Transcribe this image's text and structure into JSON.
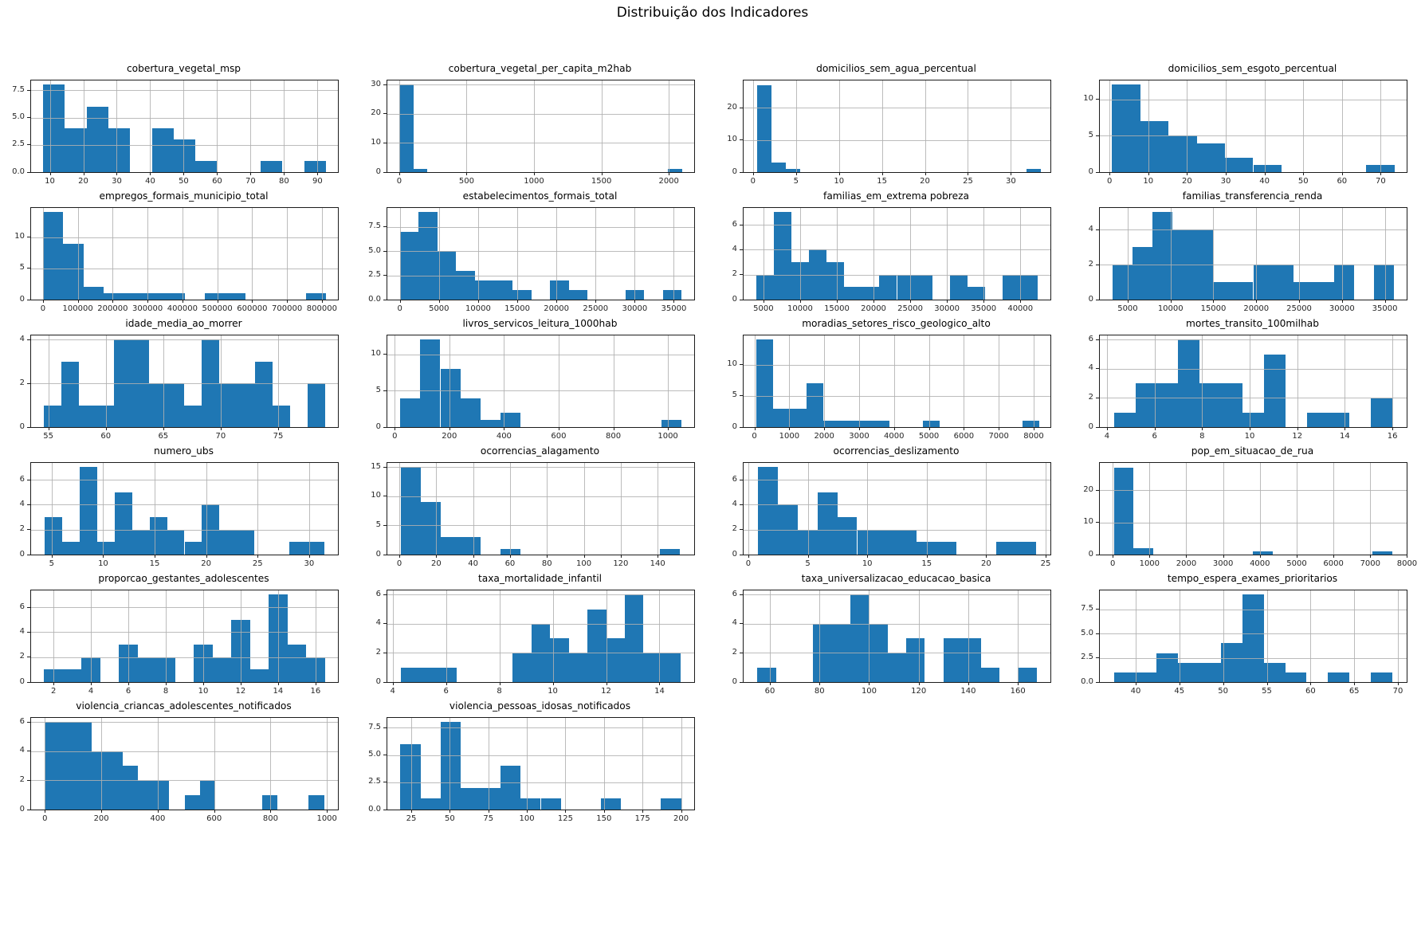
{
  "figure": {
    "title": "Distribuição dos Indicadores",
    "bar_color": "#1f77b4",
    "grid_color": "#b0b0b0",
    "layout": "4 columns x 6 rows, 22 histograms, grid on, no legend"
  },
  "chart_data": [
    {
      "type": "histogram",
      "title": "cobertura_vegetal_msp",
      "bin_start": 8,
      "bin_width": 6.5,
      "heights": [
        8,
        4,
        6,
        4,
        0,
        4,
        3,
        1,
        0,
        0,
        1,
        0,
        1
      ],
      "xlim": [
        4.4,
        96.1
      ],
      "x_ticks": [
        10,
        20,
        30,
        40,
        50,
        60,
        70,
        80,
        90
      ],
      "y_ticks": [
        0,
        2.5,
        5,
        7.5
      ],
      "y_labels": [
        "0.0",
        "2.5",
        "5.0",
        "7.5"
      ],
      "ymax": 8.4
    },
    {
      "type": "histogram",
      "title": "cobertura_vegetal_per_capita_m2hab",
      "bin_start": 0,
      "bin_width": 105,
      "heights": [
        30,
        1,
        0,
        0,
        0,
        0,
        0,
        0,
        0,
        0,
        0,
        0,
        0,
        0,
        0,
        0,
        0,
        0,
        0,
        1
      ],
      "xlim": [
        -88,
        2188
      ],
      "x_ticks": [
        0,
        500,
        1000,
        1500,
        2000
      ],
      "y_ticks": [
        0,
        10,
        20,
        30
      ],
      "y_labels": [
        "0",
        "10",
        "20",
        "30"
      ],
      "ymax": 31.5
    },
    {
      "type": "histogram",
      "title": "domicilios_sem_agua_percentual",
      "bin_start": 0.5,
      "bin_width": 1.65,
      "heights": [
        27,
        3,
        1,
        0,
        0,
        0,
        0,
        0,
        0,
        0,
        0,
        0,
        0,
        0,
        0,
        0,
        0,
        0,
        0,
        1
      ],
      "xlim": [
        -1.1,
        34.6
      ],
      "x_ticks": [
        0,
        5,
        10,
        15,
        20,
        25,
        30
      ],
      "y_ticks": [
        0,
        10,
        20
      ],
      "y_labels": [
        "0",
        "10",
        "20"
      ],
      "ymax": 28.4
    },
    {
      "type": "histogram",
      "title": "domicilios_sem_esgoto_percentual",
      "bin_start": 0.6,
      "bin_width": 7.3,
      "heights": [
        12,
        7,
        5,
        4,
        2,
        1,
        0,
        0,
        0,
        1
      ],
      "xlim": [
        -2.5,
        76.7
      ],
      "x_ticks": [
        0,
        10,
        20,
        30,
        40,
        50,
        60,
        70
      ],
      "y_ticks": [
        0,
        5,
        10
      ],
      "y_labels": [
        "0",
        "5",
        "10"
      ],
      "ymax": 12.6
    },
    {
      "type": "histogram",
      "title": "empregos_formais_municipio_total",
      "bin_start": 0,
      "bin_width": 58000,
      "heights": [
        14,
        9,
        2,
        1,
        1,
        1,
        1,
        0,
        1,
        1,
        0,
        0,
        0,
        1
      ],
      "xlim": [
        -34000,
        846000
      ],
      "x_ticks": [
        0,
        100000,
        200000,
        300000,
        400000,
        500000,
        600000,
        700000,
        800000
      ],
      "y_ticks": [
        0,
        5,
        10
      ],
      "y_labels": [
        "0",
        "5",
        "10"
      ],
      "ymax": 14.7
    },
    {
      "type": "histogram",
      "title": "estabelecimentos_formais_total",
      "bin_start": 0,
      "bin_width": 2400,
      "heights": [
        7,
        9,
        5,
        3,
        2,
        2,
        1,
        0,
        2,
        1,
        0,
        0,
        1,
        0,
        1
      ],
      "xlim": [
        -1600,
        37600
      ],
      "x_ticks": [
        0,
        5000,
        10000,
        15000,
        20000,
        25000,
        30000,
        35000
      ],
      "y_ticks": [
        0,
        2.5,
        5,
        7.5
      ],
      "y_labels": [
        "0.0",
        "2.5",
        "5.0",
        "7.5"
      ],
      "ymax": 9.45
    },
    {
      "type": "histogram",
      "title": "familias_em_extrema pobreza",
      "bin_start": 4000,
      "bin_width": 2400,
      "heights": [
        2,
        7,
        3,
        4,
        3,
        1,
        1,
        2,
        2,
        2,
        0,
        2,
        1,
        0,
        2,
        2
      ],
      "xlim": [
        2300,
        44100
      ],
      "x_ticks": [
        5000,
        10000,
        15000,
        20000,
        25000,
        30000,
        35000,
        40000
      ],
      "y_ticks": [
        0,
        2,
        4,
        6
      ],
      "y_labels": [
        "0",
        "2",
        "4",
        "6"
      ],
      "ymax": 7.35
    },
    {
      "type": "histogram",
      "title": "familias_transferencia_renda",
      "bin_start": 3200,
      "bin_width": 2350,
      "heights": [
        2,
        3,
        5,
        4,
        4,
        1,
        1,
        2,
        2,
        1,
        1,
        2,
        0,
        2
      ],
      "xlim": [
        1750,
        37550
      ],
      "x_ticks": [
        5000,
        10000,
        15000,
        20000,
        25000,
        30000,
        35000
      ],
      "y_ticks": [
        0,
        2,
        4
      ],
      "y_labels": [
        "0",
        "2",
        "4"
      ],
      "ymax": 5.25
    },
    {
      "type": "histogram",
      "title": "idade_media_ao_morrer",
      "bin_start": 54.6,
      "bin_width": 1.53,
      "heights": [
        1,
        3,
        1,
        1,
        4,
        4,
        2,
        2,
        1,
        4,
        2,
        2,
        3,
        1,
        0,
        2
      ],
      "xlim": [
        53.5,
        80.2
      ],
      "x_ticks": [
        55,
        60,
        65,
        70,
        75
      ],
      "y_ticks": [
        0,
        2,
        4
      ],
      "y_labels": [
        "0",
        "2",
        "4"
      ],
      "ymax": 4.2
    },
    {
      "type": "histogram",
      "title": "livros_servicos_leitura_1000hab",
      "bin_start": 20,
      "bin_width": 73.5,
      "heights": [
        4,
        12,
        8,
        4,
        1,
        2,
        0,
        0,
        0,
        0,
        0,
        0,
        0,
        1
      ],
      "xlim": [
        -27,
        1096
      ],
      "x_ticks": [
        0,
        200,
        400,
        600,
        800,
        1000
      ],
      "y_ticks": [
        0,
        5,
        10
      ],
      "y_labels": [
        "0",
        "5",
        "10"
      ],
      "ymax": 12.6
    },
    {
      "type": "histogram",
      "title": "moradias_setores_risco_geologico_alto",
      "bin_start": 60,
      "bin_width": 477,
      "heights": [
        14,
        3,
        3,
        7,
        1,
        1,
        1,
        1,
        0,
        0,
        1,
        0,
        0,
        0,
        0,
        0,
        1
      ],
      "xlim": [
        -310,
        8480
      ],
      "x_ticks": [
        0,
        1000,
        2000,
        3000,
        4000,
        5000,
        6000,
        7000,
        8000
      ],
      "y_ticks": [
        0,
        5,
        10
      ],
      "y_labels": [
        "0",
        "5",
        "10"
      ],
      "ymax": 14.7
    },
    {
      "type": "histogram",
      "title": "mortes_transito_100milhab",
      "bin_start": 4.3,
      "bin_width": 0.9,
      "heights": [
        1,
        3,
        3,
        6,
        3,
        3,
        1,
        5,
        0,
        1,
        1,
        0,
        2
      ],
      "xlim": [
        3.7,
        16.6
      ],
      "x_ticks": [
        4,
        6,
        8,
        10,
        12,
        14,
        16
      ],
      "y_ticks": [
        0,
        2,
        4,
        6
      ],
      "y_labels": [
        "0",
        "2",
        "4",
        "6"
      ],
      "ymax": 6.3
    },
    {
      "type": "histogram",
      "title": "numero_ubs",
      "bin_start": 4.3,
      "bin_width": 1.7,
      "heights": [
        3,
        1,
        7,
        1,
        5,
        2,
        3,
        2,
        1,
        4,
        2,
        2,
        0,
        0,
        1,
        1
      ],
      "xlim": [
        3.0,
        32.8
      ],
      "x_ticks": [
        5,
        10,
        15,
        20,
        25,
        30
      ],
      "y_ticks": [
        0,
        2,
        4,
        6
      ],
      "y_labels": [
        "0",
        "2",
        "4",
        "6"
      ],
      "ymax": 7.35
    },
    {
      "type": "histogram",
      "title": "ocorrencias_alagamento",
      "bin_start": 1,
      "bin_width": 10.8,
      "heights": [
        15,
        9,
        3,
        3,
        0,
        1,
        0,
        0,
        0,
        0,
        0,
        0,
        0,
        1
      ],
      "xlim": [
        -6.5,
        159.8
      ],
      "x_ticks": [
        0,
        20,
        40,
        60,
        80,
        100,
        120,
        140
      ],
      "y_ticks": [
        0,
        5,
        10,
        15
      ],
      "y_labels": [
        "0",
        "5",
        "10",
        "15"
      ],
      "ymax": 15.75
    },
    {
      "type": "histogram",
      "title": "ocorrencias_deslizamento",
      "bin_start": 0.8,
      "bin_width": 1.67,
      "heights": [
        7,
        4,
        2,
        5,
        3,
        2,
        2,
        2,
        1,
        1,
        0,
        0,
        1,
        1
      ],
      "xlim": [
        -0.4,
        25.4
      ],
      "x_ticks": [
        0,
        5,
        10,
        15,
        20,
        25
      ],
      "y_ticks": [
        0,
        2,
        4,
        6
      ],
      "y_labels": [
        "0",
        "2",
        "4",
        "6"
      ],
      "ymax": 7.35
    },
    {
      "type": "histogram",
      "title": "pop_em_situacao_de_rua",
      "bin_start": 30,
      "bin_width": 540,
      "heights": [
        27,
        2,
        0,
        0,
        0,
        0,
        0,
        1,
        0,
        0,
        0,
        0,
        0,
        1
      ],
      "xlim": [
        -350,
        7990
      ],
      "x_ticks": [
        0,
        1000,
        2000,
        3000,
        4000,
        5000,
        6000,
        7000,
        8000
      ],
      "y_ticks": [
        0,
        10,
        20
      ],
      "y_labels": [
        "0",
        "10",
        "20"
      ],
      "ymax": 28.4
    },
    {
      "type": "histogram",
      "title": "proporcao_gestantes_adolescentes",
      "bin_start": 1.5,
      "bin_width": 1.0,
      "heights": [
        1,
        1,
        2,
        0,
        3,
        2,
        2,
        0,
        3,
        2,
        5,
        1,
        7,
        3,
        2
      ],
      "xlim": [
        0.8,
        17.2
      ],
      "x_ticks": [
        2,
        4,
        6,
        8,
        10,
        12,
        14,
        16
      ],
      "y_ticks": [
        0,
        2,
        4,
        6
      ],
      "y_labels": [
        "0",
        "2",
        "4",
        "6"
      ],
      "ymax": 7.35
    },
    {
      "type": "histogram",
      "title": "taxa_mortalidade_infantil",
      "bin_start": 4.3,
      "bin_width": 0.7,
      "heights": [
        1,
        1,
        1,
        0,
        0,
        0,
        2,
        4,
        3,
        2,
        5,
        3,
        6,
        2,
        2
      ],
      "xlim": [
        3.8,
        15.3
      ],
      "x_ticks": [
        4,
        6,
        8,
        10,
        12,
        14
      ],
      "y_ticks": [
        0,
        2,
        4,
        6
      ],
      "y_labels": [
        "0",
        "2",
        "4",
        "6"
      ],
      "ymax": 6.3
    },
    {
      "type": "histogram",
      "title": "taxa_universalizacao_educacao_basica",
      "bin_start": 55,
      "bin_width": 7.5,
      "heights": [
        1,
        0,
        0,
        4,
        4,
        6,
        4,
        2,
        3,
        0,
        3,
        3,
        1,
        0,
        1
      ],
      "xlim": [
        49.4,
        173.1
      ],
      "x_ticks": [
        60,
        80,
        100,
        120,
        140,
        160
      ],
      "y_ticks": [
        0,
        2,
        4,
        6
      ],
      "y_labels": [
        "0",
        "2",
        "4",
        "6"
      ],
      "ymax": 6.3
    },
    {
      "type": "histogram",
      "title": "tempo_espera_exames_prioritarios",
      "bin_start": 37.5,
      "bin_width": 2.45,
      "heights": [
        1,
        1,
        3,
        2,
        2,
        4,
        9,
        2,
        1,
        0,
        1,
        0,
        1
      ],
      "xlim": [
        35.9,
        71.0
      ],
      "x_ticks": [
        40,
        45,
        50,
        55,
        60,
        65,
        70
      ],
      "y_ticks": [
        0,
        2.5,
        5,
        7.5
      ],
      "y_labels": [
        "0.0",
        "2.5",
        "5.0",
        "7.5"
      ],
      "ymax": 9.45
    },
    {
      "type": "histogram",
      "title": "violencia_criancas_adolescentes_notificados",
      "bin_start": 0,
      "bin_width": 55,
      "heights": [
        6,
        6,
        6,
        4,
        4,
        3,
        2,
        2,
        0,
        1,
        2,
        0,
        0,
        0,
        1,
        0,
        0,
        1
      ],
      "xlim": [
        -49,
        1039
      ],
      "x_ticks": [
        0,
        200,
        400,
        600,
        800,
        1000
      ],
      "y_ticks": [
        0,
        2,
        4,
        6
      ],
      "y_labels": [
        "0",
        "2",
        "4",
        "6"
      ],
      "ymax": 6.3
    },
    {
      "type": "histogram",
      "title": "violencia_pessoas_idosas_notificados",
      "bin_start": 18,
      "bin_width": 13,
      "heights": [
        6,
        1,
        8,
        2,
        2,
        4,
        1,
        1,
        0,
        0,
        1,
        0,
        0,
        1
      ],
      "xlim": [
        9.5,
        208.5
      ],
      "x_ticks": [
        25,
        50,
        75,
        100,
        125,
        150,
        175,
        200
      ],
      "y_ticks": [
        0,
        2.5,
        5,
        7.5
      ],
      "y_labels": [
        "0.0",
        "2.5",
        "5.0",
        "7.5"
      ],
      "ymax": 8.4
    }
  ]
}
